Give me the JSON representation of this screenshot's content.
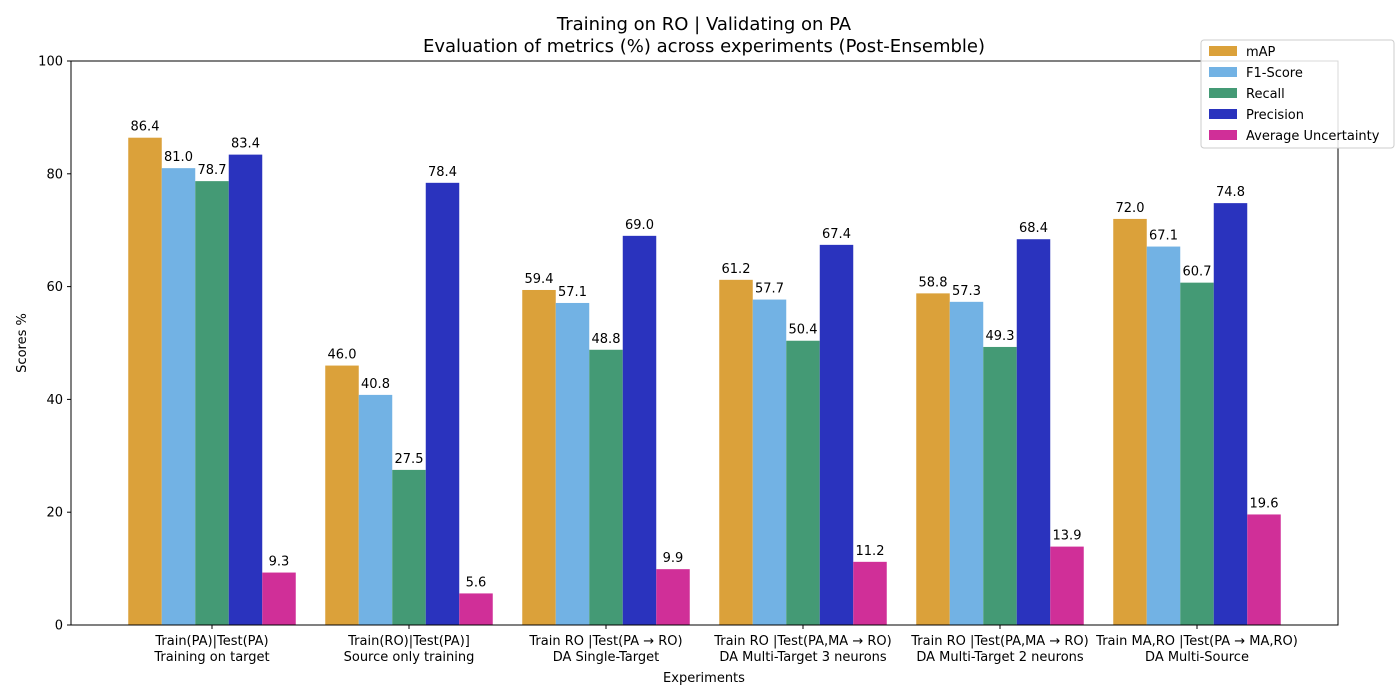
{
  "chart_data": {
    "type": "bar",
    "title": "Training on RO | Validating on PA",
    "subtitle": "Evaluation of metrics (%) across experiments (Post-Ensemble)",
    "xlabel": "Experiments",
    "ylabel": "Scores %",
    "ylim": [
      0,
      100
    ],
    "yticks": [
      0,
      20,
      40,
      60,
      80,
      100
    ],
    "grid": false,
    "legend_position": "top-right",
    "categories": [
      [
        "Train(PA)|Test(PA)",
        "Training on target"
      ],
      [
        "Train(RO)|Test(PA)]",
        "Source only training"
      ],
      [
        "Train RO |Test(PA → RO)",
        "DA Single-Target"
      ],
      [
        "Train RO |Test(PA,MA → RO)",
        "DA Multi-Target 3 neurons"
      ],
      [
        "Train RO |Test(PA,MA → RO)",
        "DA Multi-Target 2 neurons"
      ],
      [
        "Train MA,RO |Test(PA → MA,RO)",
        "DA Multi-Source"
      ]
    ],
    "series": [
      {
        "name": "mAP",
        "color": "#DBA13A",
        "values": [
          86.4,
          46.0,
          59.4,
          61.2,
          58.8,
          72.0
        ]
      },
      {
        "name": "F1-Score",
        "color": "#72B2E4",
        "values": [
          81.0,
          40.8,
          57.1,
          57.7,
          57.3,
          67.1
        ]
      },
      {
        "name": "Recall",
        "color": "#449A75",
        "values": [
          78.7,
          27.5,
          48.8,
          50.4,
          49.3,
          60.7
        ]
      },
      {
        "name": "Precision",
        "color": "#2A33BE",
        "values": [
          83.4,
          78.4,
          69.0,
          67.4,
          68.4,
          74.8
        ]
      },
      {
        "name": "Average Uncertainty",
        "color": "#D02F98",
        "values": [
          9.3,
          5.6,
          9.9,
          11.2,
          13.9,
          19.6
        ]
      }
    ]
  }
}
